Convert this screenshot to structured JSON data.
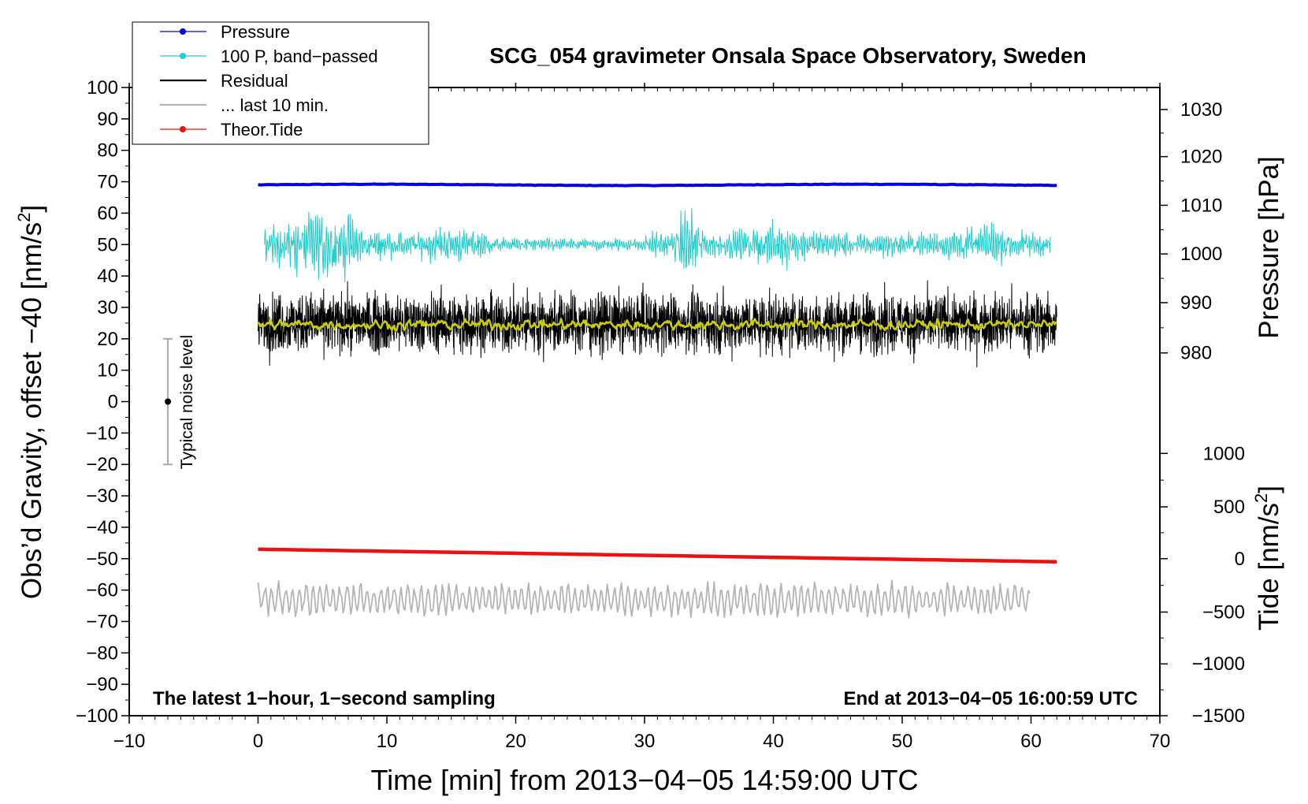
{
  "chart_data": {
    "type": "line",
    "title": "SCG_054 gravimeter Onsala Space Observatory, Sweden",
    "xlabel": "Time [min] from 2013−04−05 14:59:00 UTC",
    "ylabel_left": "Obs’d Gravity, offset −40 [nm/s",
    "ylabel_left_sup": "2",
    "ylabel_left_end": "]",
    "ylabel_right_pressure": "Pressure [hPa]",
    "ylabel_right_tide": "Tide [nm/s",
    "ylabel_right_tide_sup": "2",
    "ylabel_right_tide_end": "]",
    "xlim": [
      -10,
      70
    ],
    "ylim": [
      -100,
      100
    ],
    "x_ticks": [
      -10,
      0,
      10,
      20,
      30,
      40,
      50,
      60,
      70
    ],
    "x_tick_labels": [
      "−10",
      "0",
      "10",
      "20",
      "30",
      "40",
      "50",
      "60",
      "70"
    ],
    "y_ticks": [
      100,
      90,
      80,
      70,
      60,
      50,
      40,
      30,
      20,
      10,
      0,
      -10,
      -20,
      -30,
      -40,
      -50,
      -60,
      -70,
      -80,
      -90,
      -100
    ],
    "y_tick_labels": [
      "100",
      "90",
      "80",
      "70",
      "60",
      "50",
      "40",
      "30",
      "20",
      "10",
      "0",
      "−10",
      "−20",
      "−30",
      "−40",
      "−50",
      "−60",
      "−70",
      "−80",
      "−90",
      "−100"
    ],
    "pressure_axis": {
      "ticks": [
        1030,
        1020,
        1010,
        1000,
        990,
        980
      ],
      "tick_labels": [
        "1030",
        "1020",
        "1010",
        "1000",
        "990",
        "980"
      ],
      "ticks_at_y": [
        93,
        78,
        62.5,
        47,
        31.5,
        15.5
      ]
    },
    "tide_axis": {
      "ticks": [
        1000,
        500,
        0,
        -500,
        -1000,
        -1500
      ],
      "tick_labels": [
        "1000",
        "500",
        "0",
        "−500",
        "−1000",
        "−1500"
      ],
      "ticks_at_y": [
        -16.5,
        -33.5,
        -50,
        -67,
        -83.5,
        -100
      ]
    },
    "legend": {
      "placement": "top-left",
      "entries": [
        {
          "label": "Pressure",
          "color": "#0000ee",
          "marker": true
        },
        {
          "label": "100 P, band−passed",
          "color": "#22cccc",
          "marker": true
        },
        {
          "label": "Residual",
          "color": "#000000",
          "marker": false
        },
        {
          "label": "... last 10 min.",
          "color": "#b4b4b4",
          "marker": false
        },
        {
          "label": "Theor.Tide",
          "color": "#ee1111",
          "marker": true
        }
      ]
    },
    "series": [
      {
        "name": "Pressure",
        "color": "#0000ee",
        "x_range": [
          0,
          62
        ],
        "level": 69,
        "amplitude": 0.4
      },
      {
        "name": "100 P, band−passed",
        "color": "#22cccc",
        "x_range": [
          0.5,
          61.5
        ],
        "level": 50,
        "amplitude": 5
      },
      {
        "name": "Residual",
        "color": "#000000",
        "x_range": [
          0,
          62
        ],
        "level": 25,
        "amplitude": 6
      },
      {
        "name": "Residual smoothed",
        "color": "#cccc00",
        "x_range": [
          0,
          62
        ],
        "level": 24.5,
        "amplitude": 1
      },
      {
        "name": "Theor.Tide",
        "color": "#ee1111",
        "x_range": [
          0,
          62
        ],
        "y_start": -47,
        "y_end": -51
      },
      {
        "name": "... last 10 min.",
        "color": "#b4b4b4",
        "x_range": [
          0,
          60
        ],
        "level": -63,
        "amplitude": 4
      }
    ],
    "noise_bar": {
      "label": "Typical noise level",
      "x": -7,
      "center": 0,
      "low": -20,
      "high": 20
    },
    "annotations": {
      "bottom_left": "The latest 1−hour, 1−second sampling",
      "bottom_right": "End at 2013−04−05 16:00:59 UTC"
    }
  }
}
